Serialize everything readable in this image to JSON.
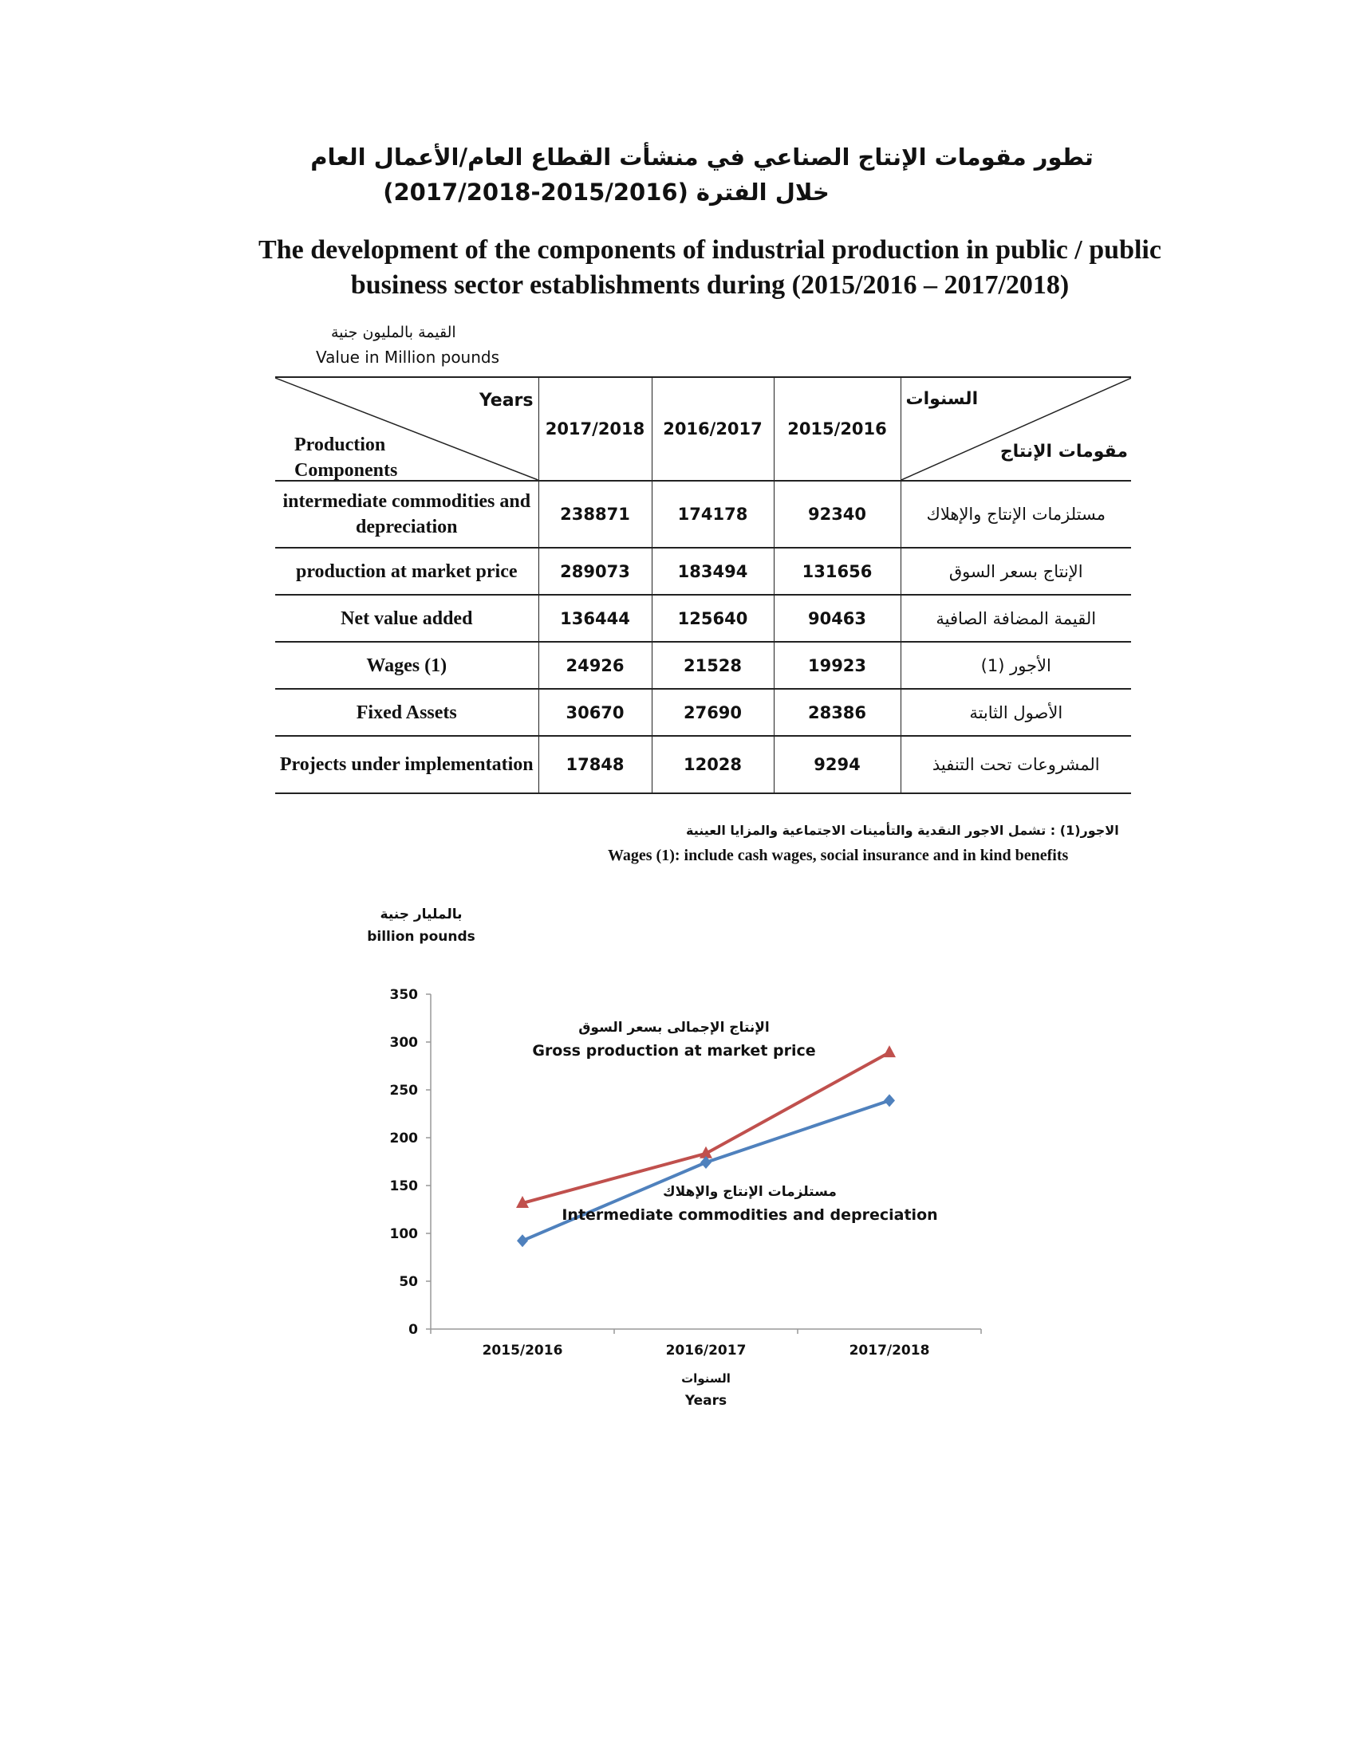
{
  "titles": {
    "ar_line1": "تطور مقومات الإنتاج الصناعي في منشأت القطاع العام/الأعمال العام",
    "ar_line2": "خلال الفترة (2015/2016-2017/2018)",
    "en": "The development of the components of industrial production in public / public business sector establishments during (2015/2016 – 2017/2018)"
  },
  "unit": {
    "ar": "القيمة بالمليون جنية",
    "en": "Value in Million pounds"
  },
  "table": {
    "corner_en_years": "Years",
    "corner_en_components": "Production Components",
    "corner_ar_years": "السنوات",
    "corner_ar_components": "مقومات الإنتاج",
    "years": [
      "2017/2018",
      "2016/2017",
      "2015/2016"
    ],
    "rows": [
      {
        "en": "intermediate commodities and depreciation",
        "values": [
          "238871",
          "174178",
          "92340"
        ],
        "ar": "مستلزمات الإنتاج والإهلاك"
      },
      {
        "en": "production at market price",
        "values": [
          "289073",
          "183494",
          "131656"
        ],
        "ar": "الإنتاج بسعر السوق"
      },
      {
        "en": "Net value added",
        "values": [
          "136444",
          "125640",
          "90463"
        ],
        "ar": "القيمة المضافة الصافية"
      },
      {
        "en": "Wages (1)",
        "values": [
          "24926",
          "21528",
          "19923"
        ],
        "ar": "الأجور (1)"
      },
      {
        "en": "Fixed Assets",
        "values": [
          "30670",
          "27690",
          "28386"
        ],
        "ar": "الأصول الثابتة"
      },
      {
        "en": "Projects under implementation",
        "values": [
          "17848",
          "12028",
          "9294"
        ],
        "ar": "المشروعات تحت التنفيذ"
      }
    ]
  },
  "notes": {
    "ar": "الاجور(1) : تشمل الاجور النقدية والتأمينات الاجتماعية والمزايا العينية",
    "en": "Wages (1): include cash wages, social insurance and in kind benefits"
  },
  "chart_data": {
    "type": "line",
    "ylabel_ar": "بالمليار جنية",
    "ylabel_en": "billion pounds",
    "xlabel_ar": "السنوات",
    "xlabel_en": "Years",
    "categories": [
      "2015/2016",
      "2016/2017",
      "2017/2018"
    ],
    "ylim": [
      0,
      350
    ],
    "yticks": [
      0,
      50,
      100,
      150,
      200,
      250,
      300,
      350
    ],
    "grid": false,
    "series": [
      {
        "name": "Gross production at market price",
        "name_ar": "الإنتاج الإجمالى بسعر السوق",
        "values": [
          131.656,
          183.494,
          289.073
        ],
        "color": "#c0504d",
        "marker": "triangle"
      },
      {
        "name": "Intermediate commodities and depreciation",
        "name_ar": "مستلزمات الإنتاج والإهلاك",
        "values": [
          92.34,
          174.178,
          238.871
        ],
        "color": "#4f81bd",
        "marker": "diamond"
      }
    ]
  }
}
